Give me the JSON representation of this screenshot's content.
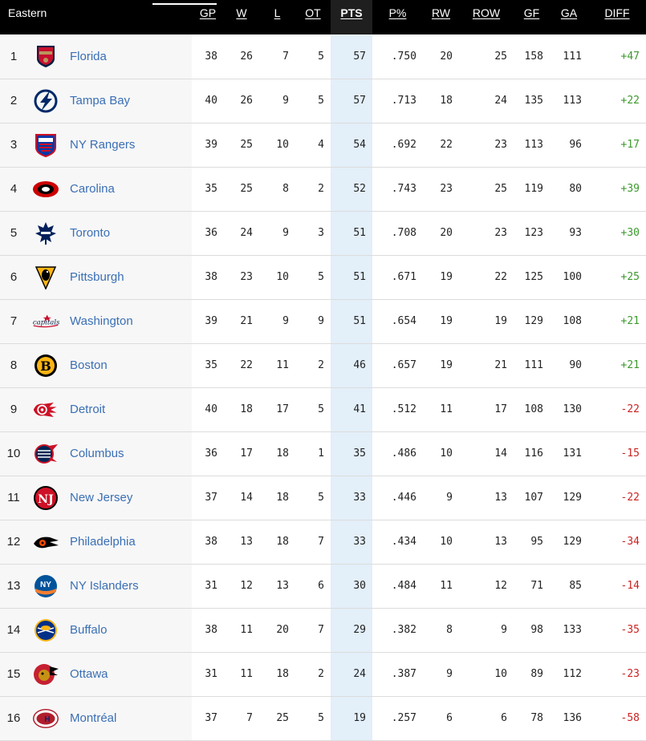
{
  "header": {
    "title": "Eastern",
    "columns": [
      "GP",
      "W",
      "L",
      "OT",
      "PTS",
      "P%",
      "RW",
      "ROW",
      "GF",
      "GA",
      "DIFF"
    ]
  },
  "colors": {
    "accent_pts": "#e3eff9",
    "team_link": "#3a6fb5",
    "positive": "#3c9a2d",
    "negative": "#cc2222"
  },
  "teams": [
    {
      "rank": "1",
      "name": "Florida",
      "logo": "florida-panthers-logo",
      "gp": "38",
      "w": "26",
      "l": "7",
      "ot": "5",
      "pts": "57",
      "pct": ".750",
      "rw": "20",
      "row": "25",
      "gf": "158",
      "ga": "111",
      "diff": "+47"
    },
    {
      "rank": "2",
      "name": "Tampa Bay",
      "logo": "tampa-bay-lightning-logo",
      "gp": "40",
      "w": "26",
      "l": "9",
      "ot": "5",
      "pts": "57",
      "pct": ".713",
      "rw": "18",
      "row": "24",
      "gf": "135",
      "ga": "113",
      "diff": "+22"
    },
    {
      "rank": "3",
      "name": "NY Rangers",
      "logo": "ny-rangers-logo",
      "gp": "39",
      "w": "25",
      "l": "10",
      "ot": "4",
      "pts": "54",
      "pct": ".692",
      "rw": "22",
      "row": "23",
      "gf": "113",
      "ga": "96",
      "diff": "+17"
    },
    {
      "rank": "4",
      "name": "Carolina",
      "logo": "carolina-hurricanes-logo",
      "gp": "35",
      "w": "25",
      "l": "8",
      "ot": "2",
      "pts": "52",
      "pct": ".743",
      "rw": "23",
      "row": "25",
      "gf": "119",
      "ga": "80",
      "diff": "+39"
    },
    {
      "rank": "5",
      "name": "Toronto",
      "logo": "toronto-maple-leafs-logo",
      "gp": "36",
      "w": "24",
      "l": "9",
      "ot": "3",
      "pts": "51",
      "pct": ".708",
      "rw": "20",
      "row": "23",
      "gf": "123",
      "ga": "93",
      "diff": "+30"
    },
    {
      "rank": "6",
      "name": "Pittsburgh",
      "logo": "pittsburgh-penguins-logo",
      "gp": "38",
      "w": "23",
      "l": "10",
      "ot": "5",
      "pts": "51",
      "pct": ".671",
      "rw": "19",
      "row": "22",
      "gf": "125",
      "ga": "100",
      "diff": "+25"
    },
    {
      "rank": "7",
      "name": "Washington",
      "logo": "washington-capitals-logo",
      "gp": "39",
      "w": "21",
      "l": "9",
      "ot": "9",
      "pts": "51",
      "pct": ".654",
      "rw": "19",
      "row": "19",
      "gf": "129",
      "ga": "108",
      "diff": "+21"
    },
    {
      "rank": "8",
      "name": "Boston",
      "logo": "boston-bruins-logo",
      "gp": "35",
      "w": "22",
      "l": "11",
      "ot": "2",
      "pts": "46",
      "pct": ".657",
      "rw": "19",
      "row": "21",
      "gf": "111",
      "ga": "90",
      "diff": "+21"
    },
    {
      "rank": "9",
      "name": "Detroit",
      "logo": "detroit-red-wings-logo",
      "gp": "40",
      "w": "18",
      "l": "17",
      "ot": "5",
      "pts": "41",
      "pct": ".512",
      "rw": "11",
      "row": "17",
      "gf": "108",
      "ga": "130",
      "diff": "-22"
    },
    {
      "rank": "10",
      "name": "Columbus",
      "logo": "columbus-blue-jackets-logo",
      "gp": "36",
      "w": "17",
      "l": "18",
      "ot": "1",
      "pts": "35",
      "pct": ".486",
      "rw": "10",
      "row": "14",
      "gf": "116",
      "ga": "131",
      "diff": "-15"
    },
    {
      "rank": "11",
      "name": "New Jersey",
      "logo": "new-jersey-devils-logo",
      "gp": "37",
      "w": "14",
      "l": "18",
      "ot": "5",
      "pts": "33",
      "pct": ".446",
      "rw": "9",
      "row": "13",
      "gf": "107",
      "ga": "129",
      "diff": "-22"
    },
    {
      "rank": "12",
      "name": "Philadelphia",
      "logo": "philadelphia-flyers-logo",
      "gp": "38",
      "w": "13",
      "l": "18",
      "ot": "7",
      "pts": "33",
      "pct": ".434",
      "rw": "10",
      "row": "13",
      "gf": "95",
      "ga": "129",
      "diff": "-34"
    },
    {
      "rank": "13",
      "name": "NY Islanders",
      "logo": "ny-islanders-logo",
      "gp": "31",
      "w": "12",
      "l": "13",
      "ot": "6",
      "pts": "30",
      "pct": ".484",
      "rw": "11",
      "row": "12",
      "gf": "71",
      "ga": "85",
      "diff": "-14"
    },
    {
      "rank": "14",
      "name": "Buffalo",
      "logo": "buffalo-sabres-logo",
      "gp": "38",
      "w": "11",
      "l": "20",
      "ot": "7",
      "pts": "29",
      "pct": ".382",
      "rw": "8",
      "row": "9",
      "gf": "98",
      "ga": "133",
      "diff": "-35"
    },
    {
      "rank": "15",
      "name": "Ottawa",
      "logo": "ottawa-senators-logo",
      "gp": "31",
      "w": "11",
      "l": "18",
      "ot": "2",
      "pts": "24",
      "pct": ".387",
      "rw": "9",
      "row": "10",
      "gf": "89",
      "ga": "112",
      "diff": "-23"
    },
    {
      "rank": "16",
      "name": "Montréal",
      "logo": "montreal-canadiens-logo",
      "gp": "37",
      "w": "7",
      "l": "25",
      "ot": "5",
      "pts": "19",
      "pct": ".257",
      "rw": "6",
      "row": "6",
      "gf": "78",
      "ga": "136",
      "diff": "-58"
    }
  ]
}
